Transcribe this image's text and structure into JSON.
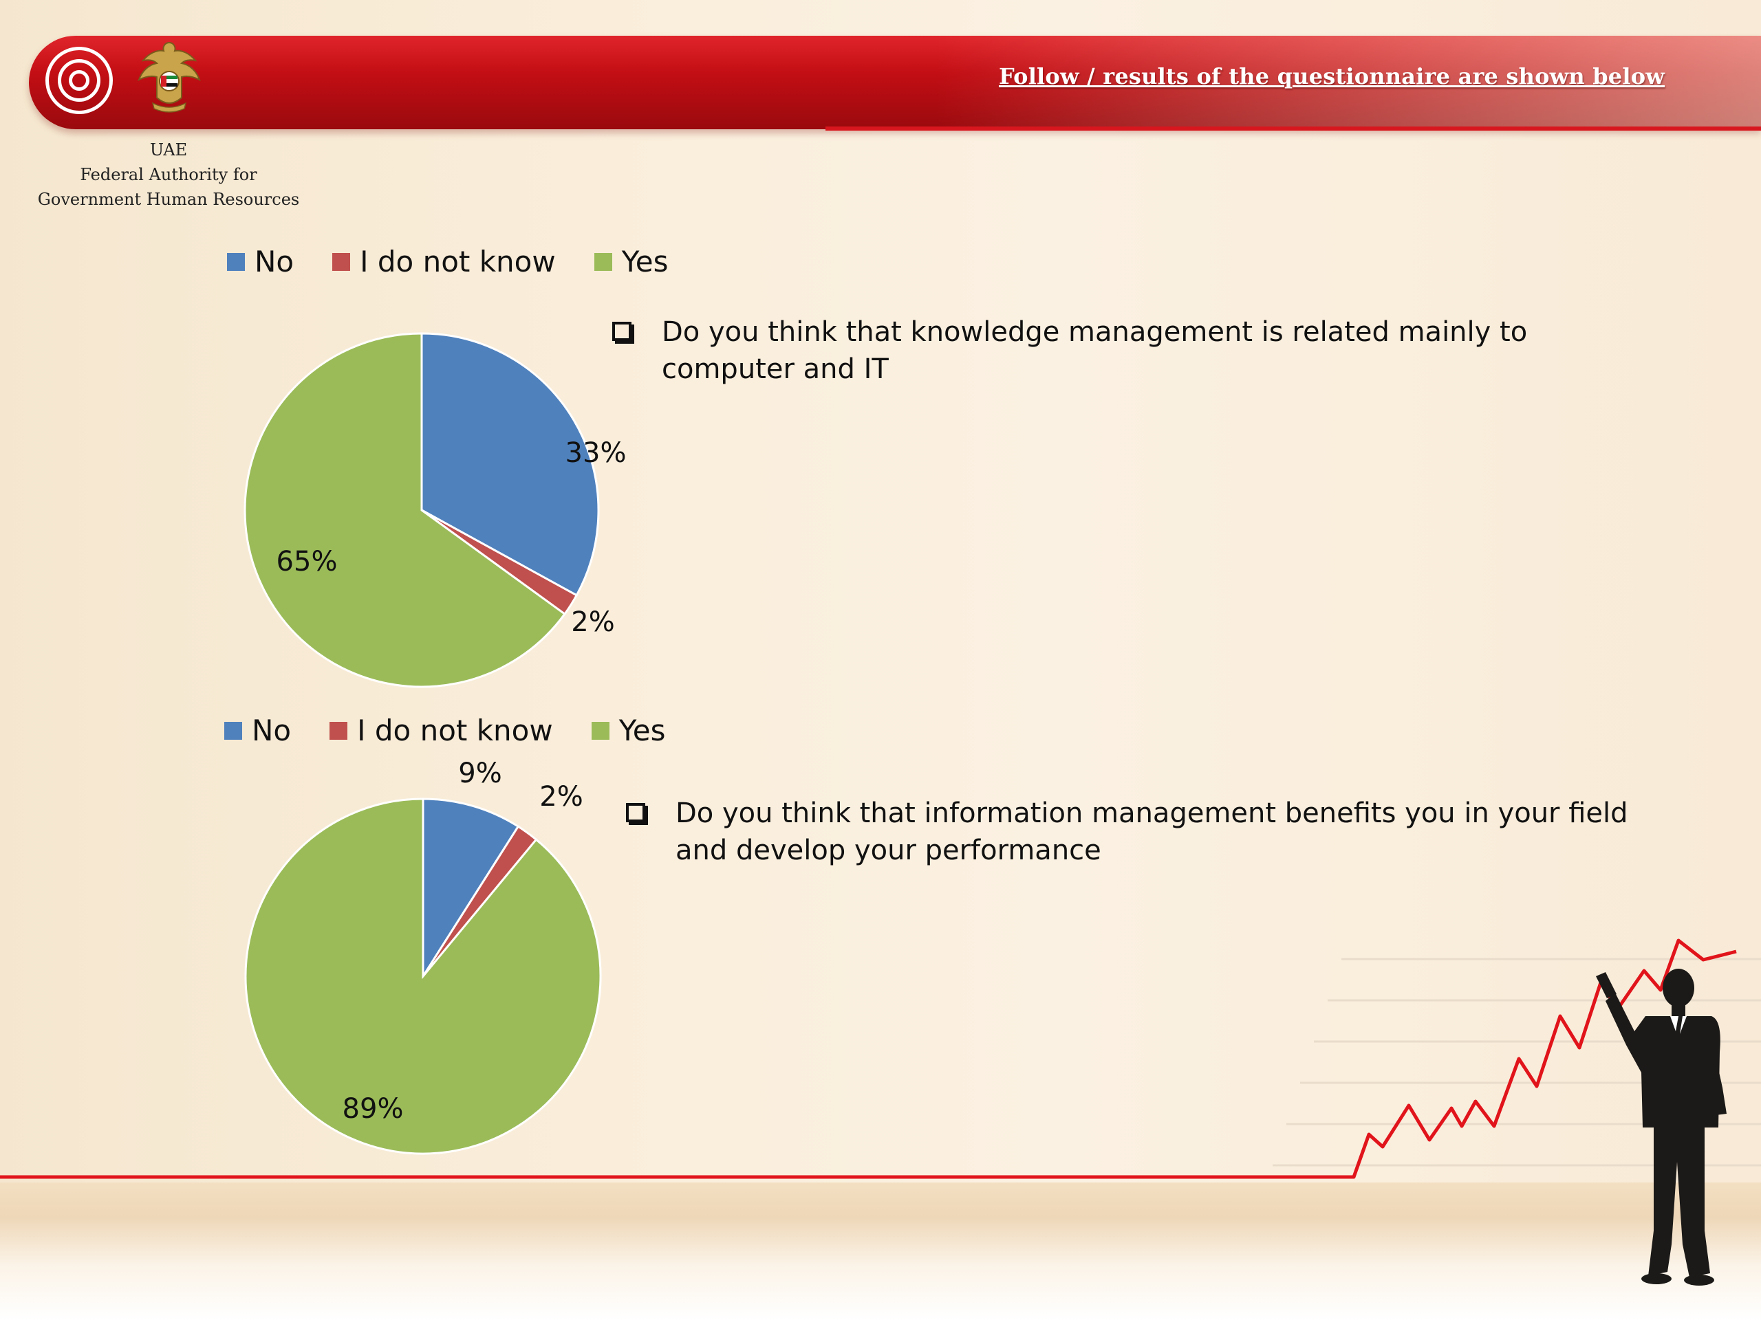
{
  "header": {
    "title": "Follow / results of the questionnaire are shown below"
  },
  "organization": {
    "line1": "UAE",
    "line2": "Federal Authority for",
    "line3": "Government Human Resources"
  },
  "colors": {
    "no": "#4f81bd",
    "dont_know": "#c0504d",
    "yes": "#9bbb59",
    "header_red": "#c20e14"
  },
  "icons": [
    "concentric-rings-logo-icon",
    "uae-emblem-icon",
    "checkbox-bullet-icon",
    "businessman-silhouette-icon"
  ],
  "chart_data": [
    {
      "type": "pie",
      "question": "Do you think that knowledge management is related mainly to computer and IT",
      "legend_position": "top",
      "categories": [
        "No",
        "I do not know",
        "Yes"
      ],
      "values": [
        33,
        2,
        65
      ],
      "labels": [
        "33%",
        "2%",
        "65%"
      ],
      "colors": [
        "#4f81bd",
        "#c0504d",
        "#9bbb59"
      ]
    },
    {
      "type": "pie",
      "question": "Do you think that information management benefits you in your field and develop your performance",
      "legend_position": "top",
      "categories": [
        "No",
        "I do not know",
        "Yes"
      ],
      "values": [
        9,
        2,
        89
      ],
      "labels": [
        "9%",
        "2%",
        "89%"
      ],
      "colors": [
        "#4f81bd",
        "#c0504d",
        "#9bbb59"
      ]
    }
  ]
}
